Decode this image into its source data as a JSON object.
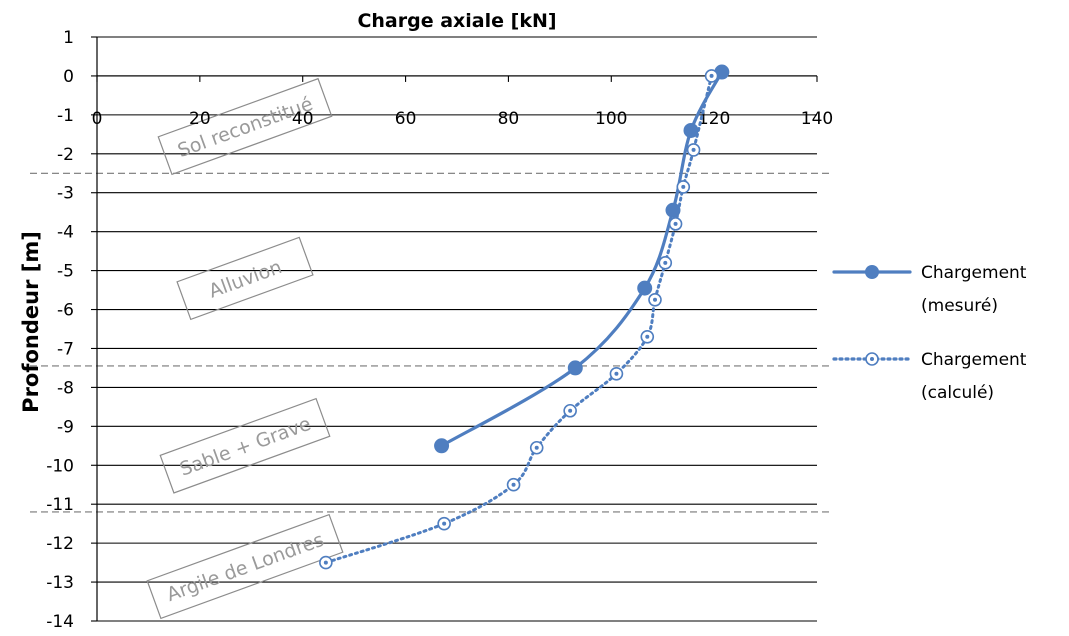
{
  "chart_data": {
    "type": "line",
    "title": "Charge axiale [kN]",
    "xlabel": "",
    "ylabel": "Profondeur [m]",
    "xlim": [
      0,
      140
    ],
    "ylim": [
      -14,
      1
    ],
    "x_ticks": [
      0,
      20,
      40,
      60,
      80,
      100,
      120,
      140
    ],
    "y_ticks": [
      1,
      0,
      -1,
      -2,
      -3,
      -4,
      -5,
      -6,
      -7,
      -8,
      -9,
      -10,
      -11,
      -12,
      -13,
      -14
    ],
    "x_axis_position": "top, crossing y = 0",
    "grid": "horizontal",
    "legend_position": "right",
    "series": [
      {
        "name": "Chargement (mesuré)",
        "legend_lines": [
          "Chargement",
          "(mesuré)"
        ],
        "style": "solid line, filled circle markers",
        "color": "#4f7ec0",
        "points": [
          {
            "x": 121.5,
            "y": 0.1
          },
          {
            "x": 115.5,
            "y": -1.4
          },
          {
            "x": 112,
            "y": -3.45
          },
          {
            "x": 106.5,
            "y": -5.45
          },
          {
            "x": 93,
            "y": -7.5
          },
          {
            "x": 67,
            "y": -9.5
          }
        ]
      },
      {
        "name": "Chargement (calculé)",
        "legend_lines": [
          "Chargement",
          "(calculé)"
        ],
        "style": "dotted line, hollow circle markers",
        "color": "#4f7ec0",
        "points": [
          {
            "x": 119.5,
            "y": 0.0
          },
          {
            "x": 116,
            "y": -1.9
          },
          {
            "x": 114,
            "y": -2.85
          },
          {
            "x": 112.5,
            "y": -3.8
          },
          {
            "x": 110.5,
            "y": -4.8
          },
          {
            "x": 108.5,
            "y": -5.75
          },
          {
            "x": 107,
            "y": -6.7
          },
          {
            "x": 101,
            "y": -7.65
          },
          {
            "x": 92,
            "y": -8.6
          },
          {
            "x": 85.5,
            "y": -9.55
          },
          {
            "x": 81,
            "y": -10.5
          },
          {
            "x": 67.5,
            "y": -11.5
          },
          {
            "x": 44.5,
            "y": -12.5
          }
        ]
      }
    ],
    "layer_boundaries": [
      -2.5,
      -7.45,
      -11.2
    ],
    "layers": [
      {
        "label": "Sol reconstitué",
        "center_y": -1.3
      },
      {
        "label": "Alluvion",
        "center_y": -5.2
      },
      {
        "label": "Sable + Grave",
        "center_y": -9.5
      },
      {
        "label": "Argile de Londres",
        "center_y": -12.6
      }
    ]
  }
}
